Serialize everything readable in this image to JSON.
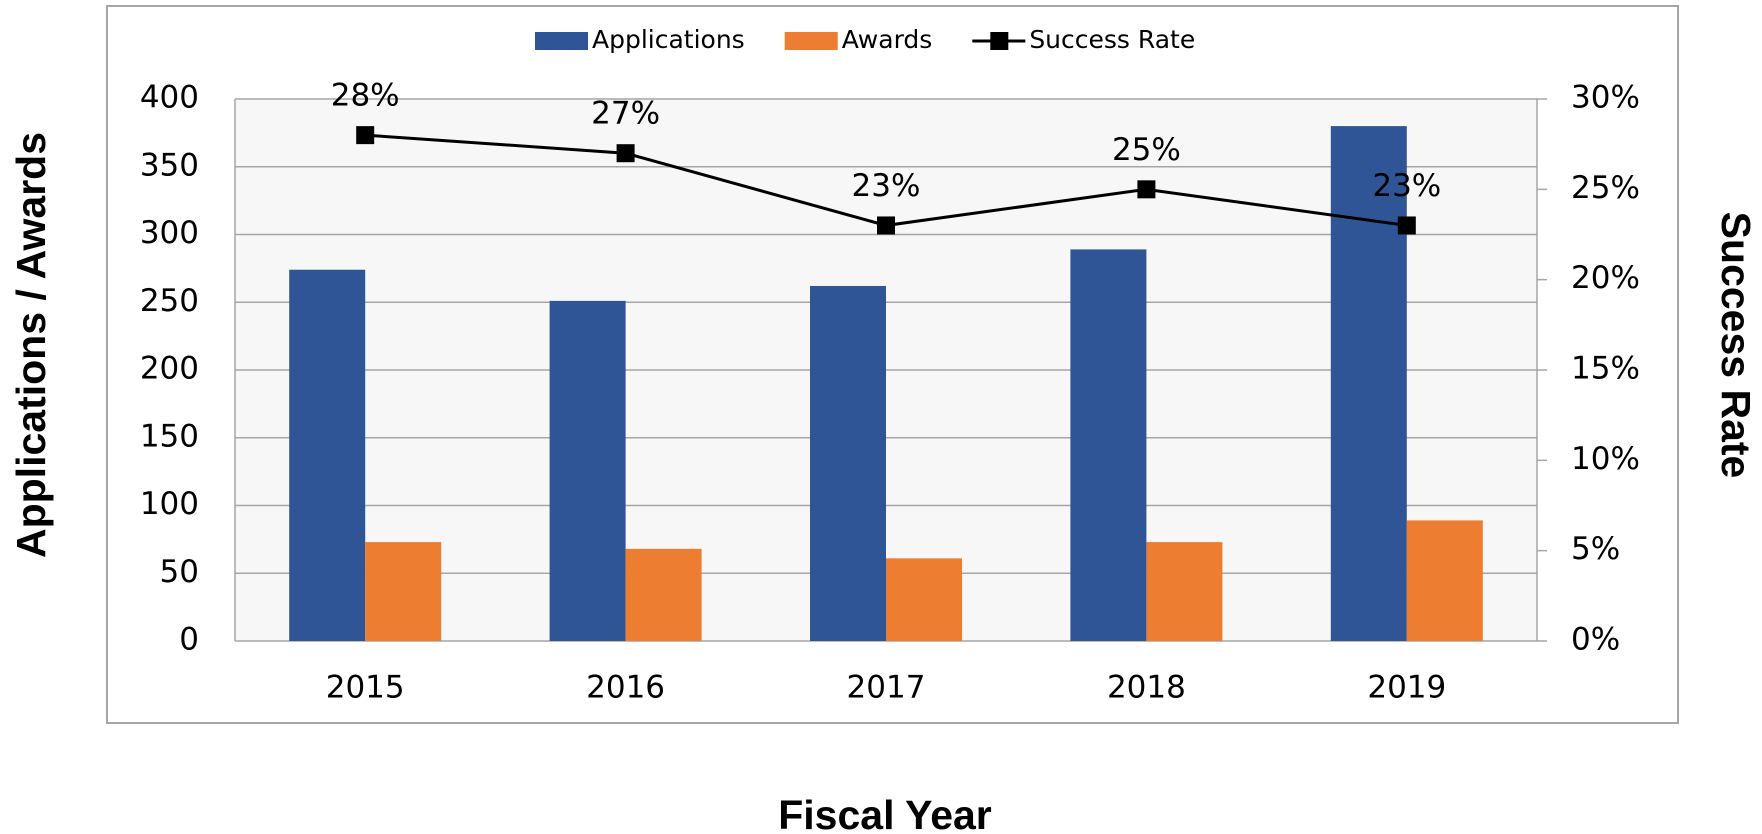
{
  "chart_data": {
    "type": "bar-line",
    "x_label": "Fiscal Year",
    "y_label": "Applications / Awards",
    "y2_label": "Success Rate",
    "categories": [
      "2015",
      "2016",
      "2017",
      "2018",
      "2019"
    ],
    "series": [
      {
        "name": "Applications",
        "color": "#2f5597",
        "type": "bar",
        "values": [
          274,
          251,
          262,
          289,
          380
        ]
      },
      {
        "name": "Awards",
        "color": "#ed7d31",
        "type": "bar",
        "values": [
          73,
          68,
          61,
          73,
          89
        ]
      },
      {
        "name": "Success Rate",
        "color": "#000000",
        "type": "line",
        "axis": "y2",
        "values": [
          28,
          27,
          23,
          25,
          23
        ],
        "value_labels": [
          "28%",
          "27%",
          "23%",
          "25%",
          "23%"
        ]
      }
    ],
    "ylim": [
      0,
      400
    ],
    "yticks": [
      0,
      50,
      100,
      150,
      200,
      250,
      300,
      350,
      400
    ],
    "y2lim": [
      0,
      30
    ],
    "y2ticks": [
      {
        "value": 0,
        "label": "0%"
      },
      {
        "value": 5,
        "label": "5%"
      },
      {
        "value": 10,
        "label": "10%"
      },
      {
        "value": 15,
        "label": "15%"
      },
      {
        "value": 20,
        "label": "20%"
      },
      {
        "value": 25,
        "label": "25%"
      },
      {
        "value": 30,
        "label": "30%"
      }
    ],
    "grid": true,
    "legend": "top"
  }
}
